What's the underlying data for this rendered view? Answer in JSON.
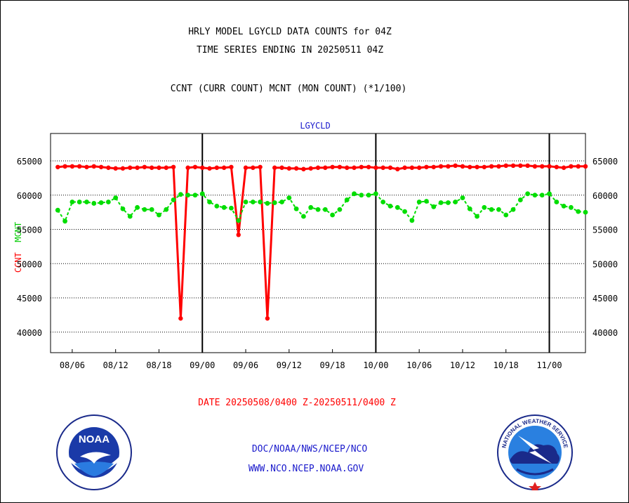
{
  "header": {
    "title_line1": "HRLY MODEL LGYCLD DATA COUNTS for 04Z",
    "title_line2": "TIME SERIES ENDING IN 20250511 04Z",
    "subtitle": "CCNT (CURR COUNT) MCNT (MON COUNT) (*1/100)"
  },
  "footer": {
    "date_range": "DATE 20250508/0400 Z-20250511/0400 Z",
    "link_path": "DOC/NOAA/NWS/NCEP/NCO",
    "link_url": "WWW.NCO.NCEP.NOAA.GOV"
  },
  "logos": {
    "left_text": "NOAA",
    "right_text": "NATIONAL WEATHER SERVICE"
  },
  "chart_data": {
    "type": "line",
    "panel_label": "LGYCLD",
    "ylabel_parts": [
      "CCNT",
      "MCNT"
    ],
    "ylim": [
      37000,
      69000
    ],
    "yticks": [
      40000,
      45000,
      50000,
      55000,
      60000,
      65000
    ],
    "ytick_labels": [
      "40000",
      "45000",
      "50000",
      "55000",
      "60000",
      "65000"
    ],
    "grid": true,
    "x_tick_labels": [
      "08/06",
      "08/12",
      "08/18",
      "09/00",
      "09/06",
      "09/12",
      "09/18",
      "10/00",
      "10/06",
      "10/12",
      "10/18",
      "11/00"
    ],
    "x_tick_positions": [
      2,
      8,
      14,
      20,
      26,
      32,
      38,
      44,
      50,
      56,
      62,
      68
    ],
    "day_boundaries": [
      20,
      44,
      68
    ],
    "x_range": [
      -1,
      73
    ],
    "colors": {
      "ccnt": "#ff0000",
      "mcnt": "#00dd00",
      "grid": "#000000"
    },
    "series": [
      {
        "key": "ccnt",
        "values": [
          64100,
          64200,
          64200,
          64200,
          64100,
          64200,
          64100,
          64000,
          63900,
          63900,
          64000,
          64000,
          64100,
          64000,
          64000,
          64000,
          64100,
          42000,
          64000,
          64100,
          64000,
          63900,
          64000,
          64000,
          64100,
          54200,
          64000,
          64000,
          64100,
          42000,
          64000,
          64000,
          63900,
          63900,
          63800,
          63900,
          64000,
          64000,
          64100,
          64100,
          64000,
          64000,
          64100,
          64100,
          64000,
          64000,
          64000,
          63800,
          64000,
          64000,
          64000,
          64100,
          64100,
          64200,
          64200,
          64300,
          64200,
          64100,
          64100,
          64100,
          64200,
          64200,
          64300,
          64300,
          64300,
          64300,
          64200,
          64200,
          64200,
          64100,
          64000,
          64200,
          64200,
          64200
        ]
      },
      {
        "key": "mcnt",
        "values": [
          57800,
          56200,
          59000,
          59000,
          59000,
          58800,
          58900,
          59000,
          59600,
          58000,
          56900,
          58200,
          57900,
          57900,
          57100,
          57900,
          59300,
          60100,
          60000,
          60000,
          60200,
          59000,
          58400,
          58200,
          58100,
          56300,
          59000,
          59000,
          59000,
          58800,
          58900,
          59000,
          59600,
          58000,
          56900,
          58200,
          57900,
          57900,
          57100,
          57900,
          59300,
          60200,
          60000,
          60000,
          60200,
          59000,
          58400,
          58200,
          57600,
          56300,
          59000,
          59100,
          58300,
          58900,
          58900,
          59000,
          59600,
          58000,
          56900,
          58200,
          57900,
          57900,
          57100,
          57900,
          59300,
          60200,
          60000,
          60000,
          60200,
          59000,
          58400,
          58200,
          57600,
          57500
        ]
      }
    ],
    "y_axis_right": true
  }
}
